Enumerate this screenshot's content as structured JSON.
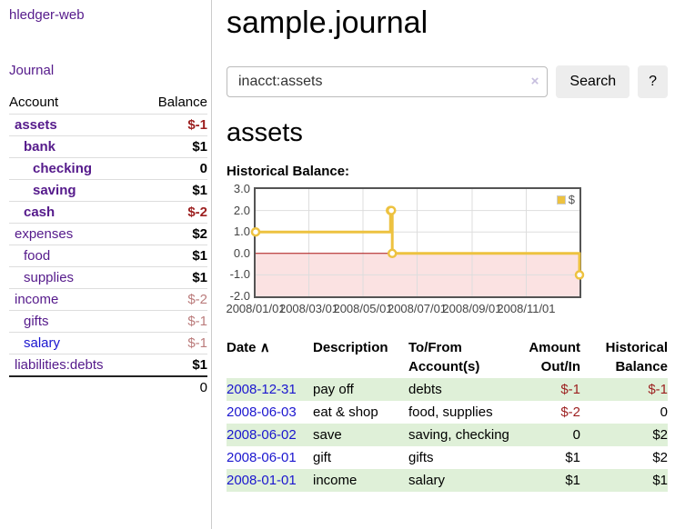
{
  "colors": {
    "purple_link": "#551a8b",
    "blue_link": "#1b16cf",
    "negative": "#9c1f1f",
    "negative_faded": "#bb7c7c",
    "stripe_green": "#dff0d8",
    "chart_line": "#edc240",
    "zero_line": "#aa1111",
    "negative_fill": "#fbe2e2",
    "gridline": "#dddddd"
  },
  "sidebar": {
    "brand": "hledger-web",
    "journal_link": "Journal",
    "accounts": {
      "header_account": "Account",
      "header_balance": "Balance",
      "rows": [
        {
          "name": "assets",
          "depth": 0,
          "bold": true,
          "balance": "$-1",
          "negative": "strong",
          "link_style": "purple"
        },
        {
          "name": "bank",
          "depth": 1,
          "bold": true,
          "balance": "$1",
          "negative": null,
          "link_style": "purple"
        },
        {
          "name": "checking",
          "depth": 2,
          "bold": true,
          "balance": "0",
          "negative": null,
          "link_style": "purple"
        },
        {
          "name": "saving",
          "depth": 2,
          "bold": true,
          "balance": "$1",
          "negative": null,
          "link_style": "purple"
        },
        {
          "name": "cash",
          "depth": 1,
          "bold": true,
          "balance": "$-2",
          "negative": "strong",
          "link_style": "purple"
        },
        {
          "name": "expenses",
          "depth": 0,
          "bold": false,
          "balance": "$2",
          "negative": null,
          "link_style": "purple"
        },
        {
          "name": "food",
          "depth": 1,
          "bold": false,
          "balance": "$1",
          "negative": null,
          "link_style": "purple"
        },
        {
          "name": "supplies",
          "depth": 1,
          "bold": false,
          "balance": "$1",
          "negative": null,
          "link_style": "purple"
        },
        {
          "name": "income",
          "depth": 0,
          "bold": false,
          "balance": "$-2",
          "negative": "faded",
          "link_style": "purple"
        },
        {
          "name": "gifts",
          "depth": 1,
          "bold": false,
          "balance": "$-1",
          "negative": "faded",
          "link_style": "purple"
        },
        {
          "name": "salary",
          "depth": 1,
          "bold": false,
          "balance": "$-1",
          "negative": "faded",
          "link_style": "blue"
        },
        {
          "name": "liabilities:debts",
          "depth": 0,
          "bold": false,
          "balance": "$1",
          "negative": null,
          "link_style": "purple"
        }
      ],
      "total": "0"
    }
  },
  "main": {
    "title": "sample.journal",
    "search": {
      "value": "inacct:assets",
      "clear_icon": "×",
      "search_button": "Search",
      "help_button": "?"
    },
    "account_heading": "assets",
    "chart_title": "Historical Balance:"
  },
  "chart_data": {
    "type": "line",
    "style": "step-after",
    "title": "Historical Balance:",
    "series": [
      {
        "name": "$",
        "color": "#edc240",
        "points": [
          [
            "2008-01-01",
            1
          ],
          [
            "2008-06-01",
            2
          ],
          [
            "2008-06-02",
            2
          ],
          [
            "2008-06-03",
            0
          ],
          [
            "2008-12-31",
            -1
          ]
        ]
      }
    ],
    "x_range": [
      "2008-01-01",
      "2008-12-31"
    ],
    "ylim": [
      -2,
      3
    ],
    "yticks": [
      {
        "label": "3.0",
        "value": 3
      },
      {
        "label": "2.0",
        "value": 2
      },
      {
        "label": "1.0",
        "value": 1
      },
      {
        "label": "0.0",
        "value": 0
      },
      {
        "label": "-1.0",
        "value": -1
      },
      {
        "label": "-2.0",
        "value": -2
      }
    ],
    "xticks": [
      {
        "label": "2008/01/01",
        "date": "2008-01-01"
      },
      {
        "label": "2008/03/01",
        "date": "2008-03-01"
      },
      {
        "label": "2008/05/01",
        "date": "2008-05-01"
      },
      {
        "label": "2008/07/01",
        "date": "2008-07-01"
      },
      {
        "label": "2008/09/01",
        "date": "2008-09-01"
      },
      {
        "label": "2008/11/01",
        "date": "2008-11-01"
      }
    ],
    "legend": {
      "label": "$",
      "position": "top-right"
    },
    "grid": true,
    "negative_region_shaded": true
  },
  "register": {
    "headers": {
      "date": "Date",
      "sort_indicator": "∧",
      "description": "Description",
      "accounts": "To/From Account(s)",
      "amount": "Amount Out/In",
      "balance": "Historical Balance"
    },
    "rows": [
      {
        "date": "2008-12-31",
        "description": "pay off",
        "accounts": "debts",
        "amount": "$-1",
        "amount_negative": true,
        "balance": "$-1",
        "balance_negative": true
      },
      {
        "date": "2008-06-03",
        "description": "eat & shop",
        "accounts": "food, supplies",
        "amount": "$-2",
        "amount_negative": true,
        "balance": "0",
        "balance_negative": false
      },
      {
        "date": "2008-06-02",
        "description": "save",
        "accounts": "saving, checking",
        "amount": "0",
        "amount_negative": false,
        "balance": "$2",
        "balance_negative": false
      },
      {
        "date": "2008-06-01",
        "description": "gift",
        "accounts": "gifts",
        "amount": "$1",
        "amount_negative": false,
        "balance": "$2",
        "balance_negative": false
      },
      {
        "date": "2008-01-01",
        "description": "income",
        "accounts": "salary",
        "amount": "$1",
        "amount_negative": false,
        "balance": "$1",
        "balance_negative": false
      }
    ]
  }
}
